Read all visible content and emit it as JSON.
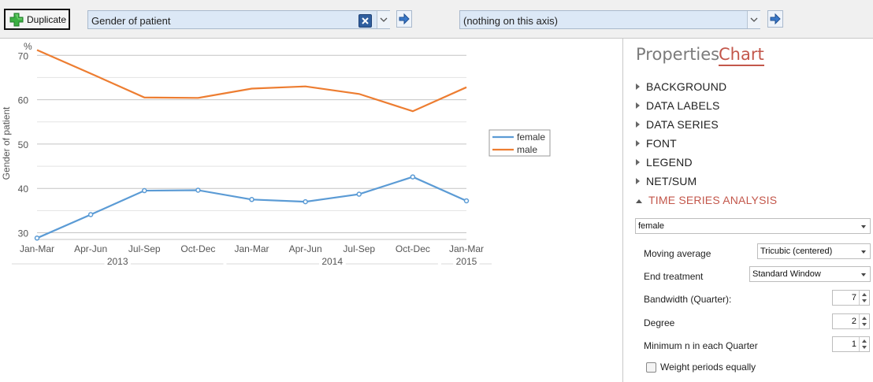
{
  "toolbar": {
    "duplicate_label": "Duplicate",
    "combo1_text": "Gender of patient",
    "combo2_text": "(nothing on this axis)"
  },
  "chart_data": {
    "type": "line",
    "categories": [
      "Jan-Mar",
      "Apr-Jun",
      "Jul-Sep",
      "Oct-Dec",
      "Jan-Mar",
      "Apr-Jun",
      "Jul-Sep",
      "Oct-Dec",
      "Jan-Mar"
    ],
    "years": [
      {
        "label": "2013",
        "from": 0,
        "to": 3
      },
      {
        "label": "2014",
        "from": 4,
        "to": 7
      },
      {
        "label": "2015",
        "from": 8,
        "to": 8
      }
    ],
    "series": [
      {
        "name": "female",
        "color": "#5b9bd5",
        "markers": true,
        "values": [
          28.8,
          34.1,
          39.5,
          39.6,
          37.5,
          37.0,
          38.7,
          42.6,
          37.2
        ]
      },
      {
        "name": "male",
        "color": "#ed7d31",
        "markers": false,
        "values": [
          71.2,
          65.9,
          60.5,
          60.4,
          62.5,
          63.0,
          61.3,
          57.4,
          62.8
        ]
      }
    ],
    "ylabel": "Gender of patient",
    "yunit": "%",
    "yticks": [
      30,
      40,
      50,
      60,
      70
    ],
    "ylim": [
      28.5,
      72
    ],
    "grid": true,
    "legend": "right"
  },
  "panel": {
    "tab_properties": "Properties",
    "tab_chart": "Chart",
    "sections": [
      "BACKGROUND",
      "DATA LABELS",
      "DATA SERIES",
      "FONT",
      "LEGEND",
      "NET/SUM",
      "TIME SERIES ANALYSIS"
    ],
    "series_select": "female",
    "moving_average_label": "Moving average",
    "moving_average_value": "Tricubic (centered)",
    "end_treatment_label": "End treatment",
    "end_treatment_value": "Standard Window",
    "bandwidth_label": "Bandwidth (Quarter):",
    "bandwidth_value": "7",
    "degree_label": "Degree",
    "degree_value": "2",
    "min_n_label": "Minimum n in each Quarter",
    "min_n_value": "1",
    "weight_label": "Weight periods equally",
    "weight_checked": false
  }
}
